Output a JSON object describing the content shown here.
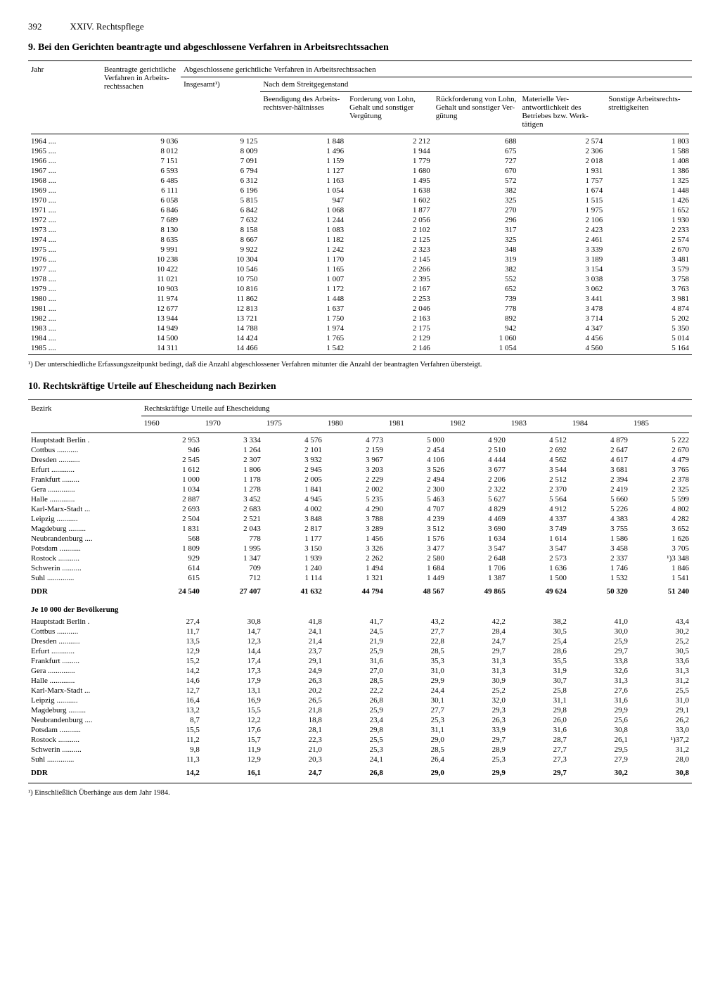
{
  "page": {
    "number": "392",
    "chapter": "XXIV. Rechtspflege"
  },
  "table9": {
    "title": "9. Bei den Gerichten beantragte und abgeschlossene Verfahren in Arbeitsrechtssachen",
    "headers": {
      "jahr": "Jahr",
      "beantragte": "Beantragte gerichtliche Verfahren in Arbeits-rechtssachen",
      "abgeschlossene": "Abgeschlossene gerichtliche Verfahren in Arbeitsrechtssachen",
      "insgesamt": "Insgesamt¹)",
      "nach": "Nach dem Streitgegenstand",
      "c1": "Beendigung des Arbeits-rechtsver-hältnisses",
      "c2": "Forderung von Lohn, Gehalt und sonstiger Vergütung",
      "c3": "Rückforderung von Lohn, Gehalt und sonstiger Ver-gütung",
      "c4": "Materielle Ver-antwortlichkeit des Betriebes bzw. Werk-tätigen",
      "c5": "Sonstige Arbeitsrechts-streitigkeiten"
    },
    "rows": [
      {
        "y": "1964",
        "b": "9 036",
        "i": "9 125",
        "c1": "1 848",
        "c2": "2 212",
        "c3": "688",
        "c4": "2 574",
        "c5": "1 803"
      },
      {
        "y": "1965",
        "b": "8 012",
        "i": "8 009",
        "c1": "1 496",
        "c2": "1 944",
        "c3": "675",
        "c4": "2 306",
        "c5": "1 588"
      },
      {
        "y": "1966",
        "b": "7 151",
        "i": "7 091",
        "c1": "1 159",
        "c2": "1 779",
        "c3": "727",
        "c4": "2 018",
        "c5": "1 408"
      },
      {
        "y": "1967",
        "b": "6 593",
        "i": "6 794",
        "c1": "1 127",
        "c2": "1 680",
        "c3": "670",
        "c4": "1 931",
        "c5": "1 386"
      },
      {
        "y": "1968",
        "b": "6 485",
        "i": "6 312",
        "c1": "1 163",
        "c2": "1 495",
        "c3": "572",
        "c4": "1 757",
        "c5": "1 325"
      },
      {
        "y": "1969",
        "b": "6 111",
        "i": "6 196",
        "c1": "1 054",
        "c2": "1 638",
        "c3": "382",
        "c4": "1 674",
        "c5": "1 448"
      },
      {
        "y": "1970",
        "b": "6 058",
        "i": "5 815",
        "c1": "947",
        "c2": "1 602",
        "c3": "325",
        "c4": "1 515",
        "c5": "1 426"
      },
      {
        "y": "1971",
        "b": "6 846",
        "i": "6 842",
        "c1": "1 068",
        "c2": "1 877",
        "c3": "270",
        "c4": "1 975",
        "c5": "1 652"
      },
      {
        "y": "1972",
        "b": "7 689",
        "i": "7 632",
        "c1": "1 244",
        "c2": "2 056",
        "c3": "296",
        "c4": "2 106",
        "c5": "1 930"
      },
      {
        "y": "1973",
        "b": "8 130",
        "i": "8 158",
        "c1": "1 083",
        "c2": "2 102",
        "c3": "317",
        "c4": "2 423",
        "c5": "2 233"
      },
      {
        "y": "1974",
        "b": "8 635",
        "i": "8 667",
        "c1": "1 182",
        "c2": "2 125",
        "c3": "325",
        "c4": "2 461",
        "c5": "2 574"
      },
      {
        "y": "1975",
        "b": "9 991",
        "i": "9 922",
        "c1": "1 242",
        "c2": "2 323",
        "c3": "348",
        "c4": "3 339",
        "c5": "2 670"
      },
      {
        "y": "1976",
        "b": "10 238",
        "i": "10 304",
        "c1": "1 170",
        "c2": "2 145",
        "c3": "319",
        "c4": "3 189",
        "c5": "3 481"
      },
      {
        "y": "1977",
        "b": "10 422",
        "i": "10 546",
        "c1": "1 165",
        "c2": "2 266",
        "c3": "382",
        "c4": "3 154",
        "c5": "3 579"
      },
      {
        "y": "1978",
        "b": "11 021",
        "i": "10 750",
        "c1": "1 007",
        "c2": "2 395",
        "c3": "552",
        "c4": "3 038",
        "c5": "3 758"
      },
      {
        "y": "1979",
        "b": "10 903",
        "i": "10 816",
        "c1": "1 172",
        "c2": "2 167",
        "c3": "652",
        "c4": "3 062",
        "c5": "3 763"
      },
      {
        "y": "1980",
        "b": "11 974",
        "i": "11 862",
        "c1": "1 448",
        "c2": "2 253",
        "c3": "739",
        "c4": "3 441",
        "c5": "3 981"
      },
      {
        "y": "1981",
        "b": "12 677",
        "i": "12 813",
        "c1": "1 637",
        "c2": "2 046",
        "c3": "778",
        "c4": "3 478",
        "c5": "4 874"
      },
      {
        "y": "1982",
        "b": "13 944",
        "i": "13 721",
        "c1": "1 750",
        "c2": "2 163",
        "c3": "892",
        "c4": "3 714",
        "c5": "5 202"
      },
      {
        "y": "1983",
        "b": "14 949",
        "i": "14 788",
        "c1": "1 974",
        "c2": "2 175",
        "c3": "942",
        "c4": "4 347",
        "c5": "5 350"
      },
      {
        "y": "1984",
        "b": "14 500",
        "i": "14 424",
        "c1": "1 765",
        "c2": "2 129",
        "c3": "1 060",
        "c4": "4 456",
        "c5": "5 014"
      },
      {
        "y": "1985",
        "b": "14 311",
        "i": "14 466",
        "c1": "1 542",
        "c2": "2 146",
        "c3": "1 054",
        "c4": "4 560",
        "c5": "5 164"
      }
    ],
    "footnote": "¹) Der unterschiedliche Erfassungszeitpunkt bedingt, daß die Anzahl abgeschlossener Verfahren mitunter die Anzahl der beantragten Verfahren übersteigt."
  },
  "table10": {
    "title": "10. Rechtskräftige Urteile auf Ehescheidung nach Bezirken",
    "headers": {
      "bezirk": "Bezirk",
      "urteile": "Rechtskräftige Urteile auf Ehescheidung",
      "years": [
        "1960",
        "1970",
        "1975",
        "1980",
        "1981",
        "1982",
        "1983",
        "1984",
        "1985"
      ]
    },
    "rows_abs": [
      {
        "n": "Hauptstadt Berlin",
        "v": [
          "2 953",
          "3 334",
          "4 576",
          "4 773",
          "5 000",
          "4 920",
          "4 512",
          "4 879",
          "5 222"
        ]
      },
      {
        "n": "Cottbus",
        "v": [
          "946",
          "1 264",
          "2 101",
          "2 159",
          "2 454",
          "2 510",
          "2 692",
          "2 647",
          "2 670"
        ]
      },
      {
        "n": "Dresden",
        "v": [
          "2 545",
          "2 307",
          "3 932",
          "3 967",
          "4 106",
          "4 444",
          "4 562",
          "4 617",
          "4 479"
        ]
      },
      {
        "n": "Erfurt",
        "v": [
          "1 612",
          "1 806",
          "2 945",
          "3 203",
          "3 526",
          "3 677",
          "3 544",
          "3 681",
          "3 765"
        ]
      },
      {
        "n": "Frankfurt",
        "v": [
          "1 000",
          "1 178",
          "2 005",
          "2 229",
          "2 494",
          "2 206",
          "2 512",
          "2 394",
          "2 378"
        ]
      },
      {
        "n": "Gera",
        "v": [
          "1 034",
          "1 278",
          "1 841",
          "2 002",
          "2 300",
          "2 322",
          "2 370",
          "2 419",
          "2 325"
        ]
      },
      {
        "n": "Halle",
        "v": [
          "2 887",
          "3 452",
          "4 945",
          "5 235",
          "5 463",
          "5 627",
          "5 564",
          "5 660",
          "5 599"
        ]
      },
      {
        "n": "Karl-Marx-Stadt",
        "v": [
          "2 693",
          "2 683",
          "4 002",
          "4 290",
          "4 707",
          "4 829",
          "4 912",
          "5 226",
          "4 802"
        ]
      },
      {
        "n": "Leipzig",
        "v": [
          "2 504",
          "2 521",
          "3 848",
          "3 788",
          "4 239",
          "4 469",
          "4 337",
          "4 383",
          "4 282"
        ]
      },
      {
        "n": "Magdeburg",
        "v": [
          "1 831",
          "2 043",
          "2 817",
          "3 289",
          "3 512",
          "3 690",
          "3 749",
          "3 755",
          "3 652"
        ]
      },
      {
        "n": "Neubrandenburg",
        "v": [
          "568",
          "778",
          "1 177",
          "1 456",
          "1 576",
          "1 634",
          "1 614",
          "1 586",
          "1 626"
        ]
      },
      {
        "n": "Potsdam",
        "v": [
          "1 809",
          "1 995",
          "3 150",
          "3 326",
          "3 477",
          "3 547",
          "3 547",
          "3 458",
          "3 705"
        ]
      },
      {
        "n": "Rostock",
        "v": [
          "929",
          "1 347",
          "1 939",
          "2 262",
          "2 580",
          "2 648",
          "2 573",
          "2 337",
          "¹)3 348"
        ]
      },
      {
        "n": "Schwerin",
        "v": [
          "614",
          "709",
          "1 240",
          "1 494",
          "1 684",
          "1 706",
          "1 636",
          "1 746",
          "1 846"
        ]
      },
      {
        "n": "Suhl",
        "v": [
          "615",
          "712",
          "1 114",
          "1 321",
          "1 449",
          "1 387",
          "1 500",
          "1 532",
          "1 541"
        ]
      }
    ],
    "ddr_abs": {
      "n": "DDR",
      "v": [
        "24 540",
        "27 407",
        "41 632",
        "44 794",
        "48 567",
        "49 865",
        "49 624",
        "50 320",
        "51 240"
      ]
    },
    "subhead": "Je 10 000 der Bevölkerung",
    "rows_rate": [
      {
        "n": "Hauptstadt Berlin",
        "v": [
          "27,4",
          "30,8",
          "41,8",
          "41,7",
          "43,2",
          "42,2",
          "38,2",
          "41,0",
          "43,4"
        ]
      },
      {
        "n": "Cottbus",
        "v": [
          "11,7",
          "14,7",
          "24,1",
          "24,5",
          "27,7",
          "28,4",
          "30,5",
          "30,0",
          "30,2"
        ]
      },
      {
        "n": "Dresden",
        "v": [
          "13,5",
          "12,3",
          "21,4",
          "21,9",
          "22,8",
          "24,7",
          "25,4",
          "25,9",
          "25,2"
        ]
      },
      {
        "n": "Erfurt",
        "v": [
          "12,9",
          "14,4",
          "23,7",
          "25,9",
          "28,5",
          "29,7",
          "28,6",
          "29,7",
          "30,5"
        ]
      },
      {
        "n": "Frankfurt",
        "v": [
          "15,2",
          "17,4",
          "29,1",
          "31,6",
          "35,3",
          "31,3",
          "35,5",
          "33,8",
          "33,6"
        ]
      },
      {
        "n": "Gera",
        "v": [
          "14,2",
          "17,3",
          "24,9",
          "27,0",
          "31,0",
          "31,3",
          "31,9",
          "32,6",
          "31,3"
        ]
      },
      {
        "n": "Halle",
        "v": [
          "14,6",
          "17,9",
          "26,3",
          "28,5",
          "29,9",
          "30,9",
          "30,7",
          "31,3",
          "31,2"
        ]
      },
      {
        "n": "Karl-Marx-Stadt",
        "v": [
          "12,7",
          "13,1",
          "20,2",
          "22,2",
          "24,4",
          "25,2",
          "25,8",
          "27,6",
          "25,5"
        ]
      },
      {
        "n": "Leipzig",
        "v": [
          "16,4",
          "16,9",
          "26,5",
          "26,8",
          "30,1",
          "32,0",
          "31,1",
          "31,6",
          "31,0"
        ]
      },
      {
        "n": "Magdeburg",
        "v": [
          "13,2",
          "15,5",
          "21,8",
          "25,9",
          "27,7",
          "29,3",
          "29,8",
          "29,9",
          "29,1"
        ]
      },
      {
        "n": "Neubrandenburg",
        "v": [
          "8,7",
          "12,2",
          "18,8",
          "23,4",
          "25,3",
          "26,3",
          "26,0",
          "25,6",
          "26,2"
        ]
      },
      {
        "n": "Potsdam",
        "v": [
          "15,5",
          "17,6",
          "28,1",
          "29,8",
          "31,1",
          "33,9",
          "31,6",
          "30,8",
          "33,0"
        ]
      },
      {
        "n": "Rostock",
        "v": [
          "11,2",
          "15,7",
          "22,3",
          "25,5",
          "29,0",
          "29,7",
          "28,7",
          "26,1",
          "¹)37,2"
        ]
      },
      {
        "n": "Schwerin",
        "v": [
          "9,8",
          "11,9",
          "21,0",
          "25,3",
          "28,5",
          "28,9",
          "27,7",
          "29,5",
          "31,2"
        ]
      },
      {
        "n": "Suhl",
        "v": [
          "11,3",
          "12,9",
          "20,3",
          "24,1",
          "26,4",
          "25,3",
          "27,3",
          "27,9",
          "28,0"
        ]
      }
    ],
    "ddr_rate": {
      "n": "DDR",
      "v": [
        "14,2",
        "16,1",
        "24,7",
        "26,8",
        "29,0",
        "29,9",
        "29,7",
        "30,2",
        "30,8"
      ]
    },
    "footnote": "¹) Einschließlich Überhänge aus dem Jahr 1984."
  }
}
